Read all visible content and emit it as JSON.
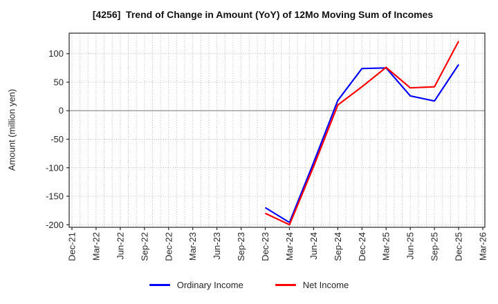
{
  "chart_data": {
    "type": "line",
    "title": "[4256]  Trend of Change in Amount (YoY) of 12Mo Moving Sum of Incomes",
    "ylabel": "Amount (million yen)",
    "xlabel": "",
    "categories": [
      "Dec-21",
      "Mar-22",
      "Jun-22",
      "Sep-22",
      "Dec-22",
      "Mar-23",
      "Jun-23",
      "Sep-23",
      "Dec-23",
      "Mar-24",
      "Jun-24",
      "Sep-24",
      "Dec-24",
      "Mar-25",
      "Jun-25",
      "Sep-25",
      "Dec-25",
      "Mar-26"
    ],
    "series": [
      {
        "name": "Ordinary Income",
        "color": "#0000ff",
        "values": [
          null,
          null,
          null,
          null,
          null,
          null,
          null,
          null,
          -170,
          -196,
          -91,
          18,
          74,
          75,
          26,
          17,
          81,
          null
        ]
      },
      {
        "name": "Net Income",
        "color": "#ff0000",
        "values": [
          null,
          null,
          null,
          null,
          null,
          null,
          null,
          null,
          -180,
          -200,
          -98,
          10,
          42,
          76,
          40,
          42,
          122,
          null
        ]
      }
    ],
    "ylim": [
      -204.5,
      136
    ],
    "yticks": [
      -200,
      -150,
      -100,
      -50,
      0,
      50,
      100
    ],
    "grid": true,
    "minor_x_divisions": 3,
    "zero_line": 0,
    "legend_position": "bottom",
    "colors": {
      "grid": "#b0b0b0",
      "zero_line": "#808080",
      "spine": "#262626",
      "tick_text": "#262626"
    }
  }
}
